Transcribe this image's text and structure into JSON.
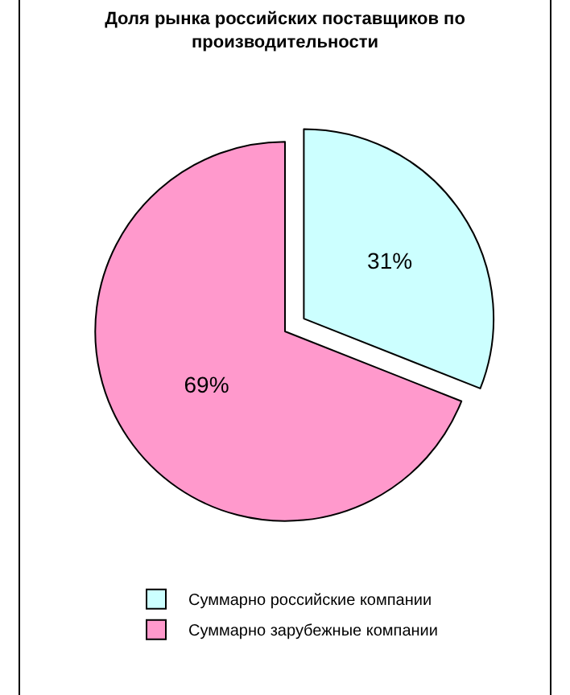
{
  "chart_data": {
    "type": "pie",
    "title": "Доля рынка российских поставщиков по производительности",
    "categories": [
      "Суммарно российские компании",
      "Суммарно зарубежные компании"
    ],
    "values": [
      31,
      69
    ],
    "colors": [
      "#ccffff",
      "#ff99cc"
    ],
    "value_labels": [
      "31%",
      "69%"
    ],
    "legend": "bottom"
  }
}
